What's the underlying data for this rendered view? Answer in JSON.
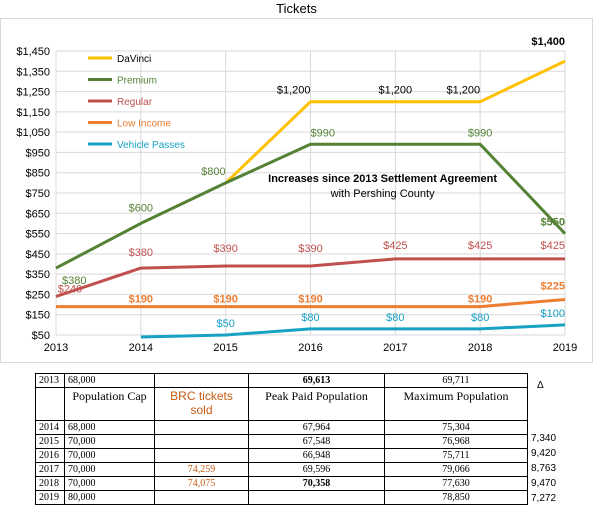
{
  "chart_data": {
    "type": "line",
    "title": "Tickets",
    "x": [
      2013,
      2014,
      2015,
      2016,
      2017,
      2018,
      2019
    ],
    "xlim": [
      2013,
      2019
    ],
    "ylim": [
      50,
      1450
    ],
    "y_ticks": [
      "$50",
      "$150",
      "$250",
      "$350",
      "$450",
      "$550",
      "$650",
      "$750",
      "$850",
      "$950",
      "$1,050",
      "$1,150",
      "$1,250",
      "$1,350",
      "$1,450"
    ],
    "x_ticks": [
      "2013",
      "2014",
      "2015",
      "2016",
      "2017",
      "2018",
      "2019"
    ],
    "grid": true,
    "legend_position": "top-left",
    "series": [
      {
        "name": "DaVinci",
        "color": "#ffc000",
        "points": [
          [
            2015,
            800
          ],
          [
            2016,
            1200
          ],
          [
            2017,
            1200
          ],
          [
            2018,
            1200
          ],
          [
            2019,
            1400
          ]
        ]
      },
      {
        "name": "Premium",
        "color": "#548235",
        "points": [
          [
            2013,
            380
          ],
          [
            2014,
            600
          ],
          [
            2015,
            800
          ],
          [
            2016,
            990
          ],
          [
            2017,
            990
          ],
          [
            2018,
            990
          ],
          [
            2019,
            550
          ]
        ]
      },
      {
        "name": "Regular",
        "color": "#c0504d",
        "points": [
          [
            2013,
            240
          ],
          [
            2014,
            380
          ],
          [
            2015,
            390
          ],
          [
            2016,
            390
          ],
          [
            2017,
            425
          ],
          [
            2018,
            425
          ],
          [
            2019,
            425
          ]
        ]
      },
      {
        "name": "Low Income",
        "color": "#ed7d31",
        "points": [
          [
            2013,
            190
          ],
          [
            2014,
            190
          ],
          [
            2015,
            190
          ],
          [
            2016,
            190
          ],
          [
            2017,
            190
          ],
          [
            2018,
            190
          ],
          [
            2019,
            225
          ]
        ]
      },
      {
        "name": "Vehicle Passes",
        "color": "#17a2c4",
        "points": [
          [
            2014,
            40
          ],
          [
            2015,
            50
          ],
          [
            2016,
            80
          ],
          [
            2017,
            80
          ],
          [
            2018,
            80
          ],
          [
            2019,
            100
          ]
        ]
      }
    ],
    "data_labels": [
      {
        "text": "$1,400",
        "x": 2019,
        "y": 1400,
        "color": "#000000",
        "bold": true,
        "anchor": "end",
        "dy": -16
      },
      {
        "text": "$1,200",
        "x": 2016,
        "y": 1200,
        "color": "#000000",
        "bold": false,
        "anchor": "end",
        "dy": -8
      },
      {
        "text": "$1,200",
        "x": 2017,
        "y": 1200,
        "color": "#000000",
        "bold": false,
        "anchor": "middle",
        "dy": -8
      },
      {
        "text": "$1,200",
        "x": 2018,
        "y": 1200,
        "color": "#000000",
        "bold": false,
        "anchor": "end",
        "dy": -8
      },
      {
        "text": "$990",
        "x": 2016,
        "y": 990,
        "color": "#548235",
        "bold": false,
        "anchor": "start",
        "dy": -8
      },
      {
        "text": "$990",
        "x": 2018,
        "y": 990,
        "color": "#548235",
        "bold": false,
        "anchor": "middle",
        "dy": -8
      },
      {
        "text": "$800",
        "x": 2015,
        "y": 800,
        "color": "#548235",
        "bold": false,
        "anchor": "end",
        "dy": -8
      },
      {
        "text": "$600",
        "x": 2014,
        "y": 600,
        "color": "#548235",
        "bold": false,
        "anchor": "middle",
        "dy": -12
      },
      {
        "text": "$550",
        "x": 2019,
        "y": 550,
        "color": "#548235",
        "bold": true,
        "anchor": "end",
        "dy": -8
      },
      {
        "text": "$380",
        "x": 2013,
        "y": 380,
        "color": "#548235",
        "bold": false,
        "anchor": "start",
        "dx": 6,
        "dy": 16
      },
      {
        "text": "$380",
        "x": 2014,
        "y": 380,
        "color": "#c0504d",
        "bold": false,
        "anchor": "middle",
        "dy": -12
      },
      {
        "text": "$390",
        "x": 2015,
        "y": 390,
        "color": "#c0504d",
        "bold": false,
        "anchor": "middle",
        "dy": -14
      },
      {
        "text": "$390",
        "x": 2016,
        "y": 390,
        "color": "#c0504d",
        "bold": false,
        "anchor": "middle",
        "dy": -14
      },
      {
        "text": "$425",
        "x": 2017,
        "y": 425,
        "color": "#c0504d",
        "bold": false,
        "anchor": "middle",
        "dy": -10
      },
      {
        "text": "$425",
        "x": 2018,
        "y": 425,
        "color": "#c0504d",
        "bold": false,
        "anchor": "middle",
        "dy": -10
      },
      {
        "text": "$425",
        "x": 2019,
        "y": 425,
        "color": "#c0504d",
        "bold": false,
        "anchor": "end",
        "dy": -10
      },
      {
        "text": "$240",
        "x": 2013,
        "y": 240,
        "color": "#c0504d",
        "bold": false,
        "anchor": "middle",
        "dx": 14,
        "dy": -4
      },
      {
        "text": "$190",
        "x": 2014,
        "y": 190,
        "color": "#ed7d31",
        "bold": true,
        "anchor": "middle",
        "dy": -4
      },
      {
        "text": "$190",
        "x": 2015,
        "y": 190,
        "color": "#ed7d31",
        "bold": true,
        "anchor": "middle",
        "dy": -4
      },
      {
        "text": "$190",
        "x": 2016,
        "y": 190,
        "color": "#ed7d31",
        "bold": true,
        "anchor": "middle",
        "dy": -4
      },
      {
        "text": "$190",
        "x": 2018,
        "y": 190,
        "color": "#ed7d31",
        "bold": true,
        "anchor": "middle",
        "dy": -4
      },
      {
        "text": "$225",
        "x": 2019,
        "y": 225,
        "color": "#ed7d31",
        "bold": true,
        "anchor": "end",
        "dy": -10
      },
      {
        "text": "$50",
        "x": 2015,
        "y": 50,
        "color": "#17a2c4",
        "bold": false,
        "anchor": "middle",
        "dy": -8
      },
      {
        "text": "$80",
        "x": 2016,
        "y": 80,
        "color": "#17a2c4",
        "bold": false,
        "anchor": "middle",
        "dy": -8
      },
      {
        "text": "$80",
        "x": 2017,
        "y": 80,
        "color": "#17a2c4",
        "bold": false,
        "anchor": "middle",
        "dy": -8
      },
      {
        "text": "$80",
        "x": 2018,
        "y": 80,
        "color": "#17a2c4",
        "bold": false,
        "anchor": "middle",
        "dy": -8
      },
      {
        "text": "$100",
        "x": 2019,
        "y": 100,
        "color": "#17a2c4",
        "bold": false,
        "anchor": "end",
        "dy": -8
      }
    ],
    "annotation": {
      "line1": "Increases since 2013 Settlement Agreement",
      "line2": "with Pershing County",
      "x": 2016.85,
      "y": 805
    }
  },
  "table": {
    "delta_header": "Δ",
    "top_row": {
      "year": "2013",
      "cap": "68,000",
      "brc": "",
      "peak": "69,613",
      "max": "69,711"
    },
    "header": {
      "cap": "Population Cap",
      "brc": "BRC tickets sold",
      "peak": "Peak Paid Population",
      "max": "Maximum Population"
    },
    "rows": [
      {
        "year": "2014",
        "cap": "68,000",
        "brc": "",
        "peak": "67,964",
        "max": "75,304",
        "delta": "7,340",
        "peak_bold": false
      },
      {
        "year": "2015",
        "cap": "70,000",
        "brc": "",
        "peak": "67,548",
        "max": "76,968",
        "delta": "9,420",
        "peak_bold": false
      },
      {
        "year": "2016",
        "cap": "70,000",
        "brc": "",
        "peak": "66,948",
        "max": "75,711",
        "delta": "8,763",
        "peak_bold": false
      },
      {
        "year": "2017",
        "cap": "70,000",
        "brc": "74,259",
        "peak": "69,596",
        "max": "79,066",
        "delta": "9,470",
        "peak_bold": false
      },
      {
        "year": "2018",
        "cap": "70,000",
        "brc": "74,075",
        "peak": "70,358",
        "max": "77,630",
        "delta": "7,272",
        "peak_bold": true
      },
      {
        "year": "2019",
        "cap": "80,000",
        "brc": "",
        "peak": "",
        "max": "78,850",
        "delta": "",
        "peak_bold": false
      }
    ]
  }
}
